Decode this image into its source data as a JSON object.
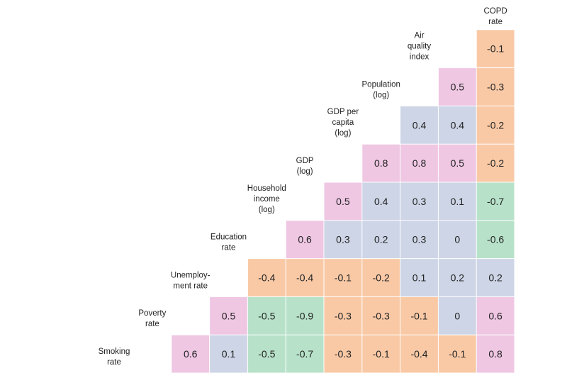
{
  "chart_data": {
    "type": "heatmap",
    "title": "",
    "variables": [
      [
        "Smoking",
        "rate"
      ],
      [
        "Poverty",
        "rate"
      ],
      [
        "Unemploy-",
        "ment rate"
      ],
      [
        "Education",
        "rate"
      ],
      [
        "Household",
        "income",
        "(log)"
      ],
      [
        "GDP",
        "(log)"
      ],
      [
        "GDP per",
        "capita",
        "(log)"
      ],
      [
        "Population",
        "(log)"
      ],
      [
        "Air",
        "quality",
        "index"
      ],
      [
        "COPD",
        "rate"
      ]
    ],
    "cells": [
      {
        "row": 1,
        "col": 0,
        "value": 0.6
      },
      {
        "row": 2,
        "col": 0,
        "value": 0.1
      },
      {
        "row": 2,
        "col": 1,
        "value": 0.5
      },
      {
        "row": 3,
        "col": 0,
        "value": -0.5
      },
      {
        "row": 3,
        "col": 1,
        "value": -0.5
      },
      {
        "row": 3,
        "col": 2,
        "value": -0.4
      },
      {
        "row": 4,
        "col": 0,
        "value": -0.7
      },
      {
        "row": 4,
        "col": 1,
        "value": -0.9
      },
      {
        "row": 4,
        "col": 2,
        "value": -0.4
      },
      {
        "row": 4,
        "col": 3,
        "value": 0.6
      },
      {
        "row": 5,
        "col": 0,
        "value": -0.3
      },
      {
        "row": 5,
        "col": 1,
        "value": -0.3
      },
      {
        "row": 5,
        "col": 2,
        "value": -0.1
      },
      {
        "row": 5,
        "col": 3,
        "value": 0.3
      },
      {
        "row": 5,
        "col": 4,
        "value": 0.5
      },
      {
        "row": 6,
        "col": 0,
        "value": -0.1
      },
      {
        "row": 6,
        "col": 1,
        "value": -0.3
      },
      {
        "row": 6,
        "col": 2,
        "value": -0.2
      },
      {
        "row": 6,
        "col": 3,
        "value": 0.2
      },
      {
        "row": 6,
        "col": 4,
        "value": 0.4
      },
      {
        "row": 6,
        "col": 5,
        "value": 0.8
      },
      {
        "row": 7,
        "col": 0,
        "value": -0.4
      },
      {
        "row": 7,
        "col": 1,
        "value": -0.1
      },
      {
        "row": 7,
        "col": 2,
        "value": 0.1
      },
      {
        "row": 7,
        "col": 3,
        "value": 0.3
      },
      {
        "row": 7,
        "col": 4,
        "value": 0.3
      },
      {
        "row": 7,
        "col": 5,
        "value": 0.8
      },
      {
        "row": 7,
        "col": 6,
        "value": 0.4
      },
      {
        "row": 8,
        "col": 0,
        "value": -0.1
      },
      {
        "row": 8,
        "col": 1,
        "value": 0
      },
      {
        "row": 8,
        "col": 2,
        "value": 0.2
      },
      {
        "row": 8,
        "col": 3,
        "value": 0
      },
      {
        "row": 8,
        "col": 4,
        "value": 0.1
      },
      {
        "row": 8,
        "col": 5,
        "value": 0.5
      },
      {
        "row": 8,
        "col": 6,
        "value": 0.4
      },
      {
        "row": 8,
        "col": 7,
        "value": 0.5
      },
      {
        "row": 9,
        "col": 0,
        "value": 0.8
      },
      {
        "row": 9,
        "col": 1,
        "value": 0.6
      },
      {
        "row": 9,
        "col": 2,
        "value": 0.2
      },
      {
        "row": 9,
        "col": 3,
        "value": -0.6
      },
      {
        "row": 9,
        "col": 4,
        "value": -0.7
      },
      {
        "row": 9,
        "col": 5,
        "value": -0.2
      },
      {
        "row": 9,
        "col": 6,
        "value": -0.2
      },
      {
        "row": 9,
        "col": 7,
        "value": -0.3
      },
      {
        "row": 9,
        "col": 8,
        "value": -0.1
      }
    ],
    "colors": {
      "strong_positive": "#efc7e3",
      "weak_positive": "#cdd5e6",
      "weak_negative": "#f9c9a6",
      "strong_negative": "#b7e2c9",
      "text": "#222222",
      "grid": "#ffffff"
    },
    "legend": "none",
    "grid": true
  }
}
